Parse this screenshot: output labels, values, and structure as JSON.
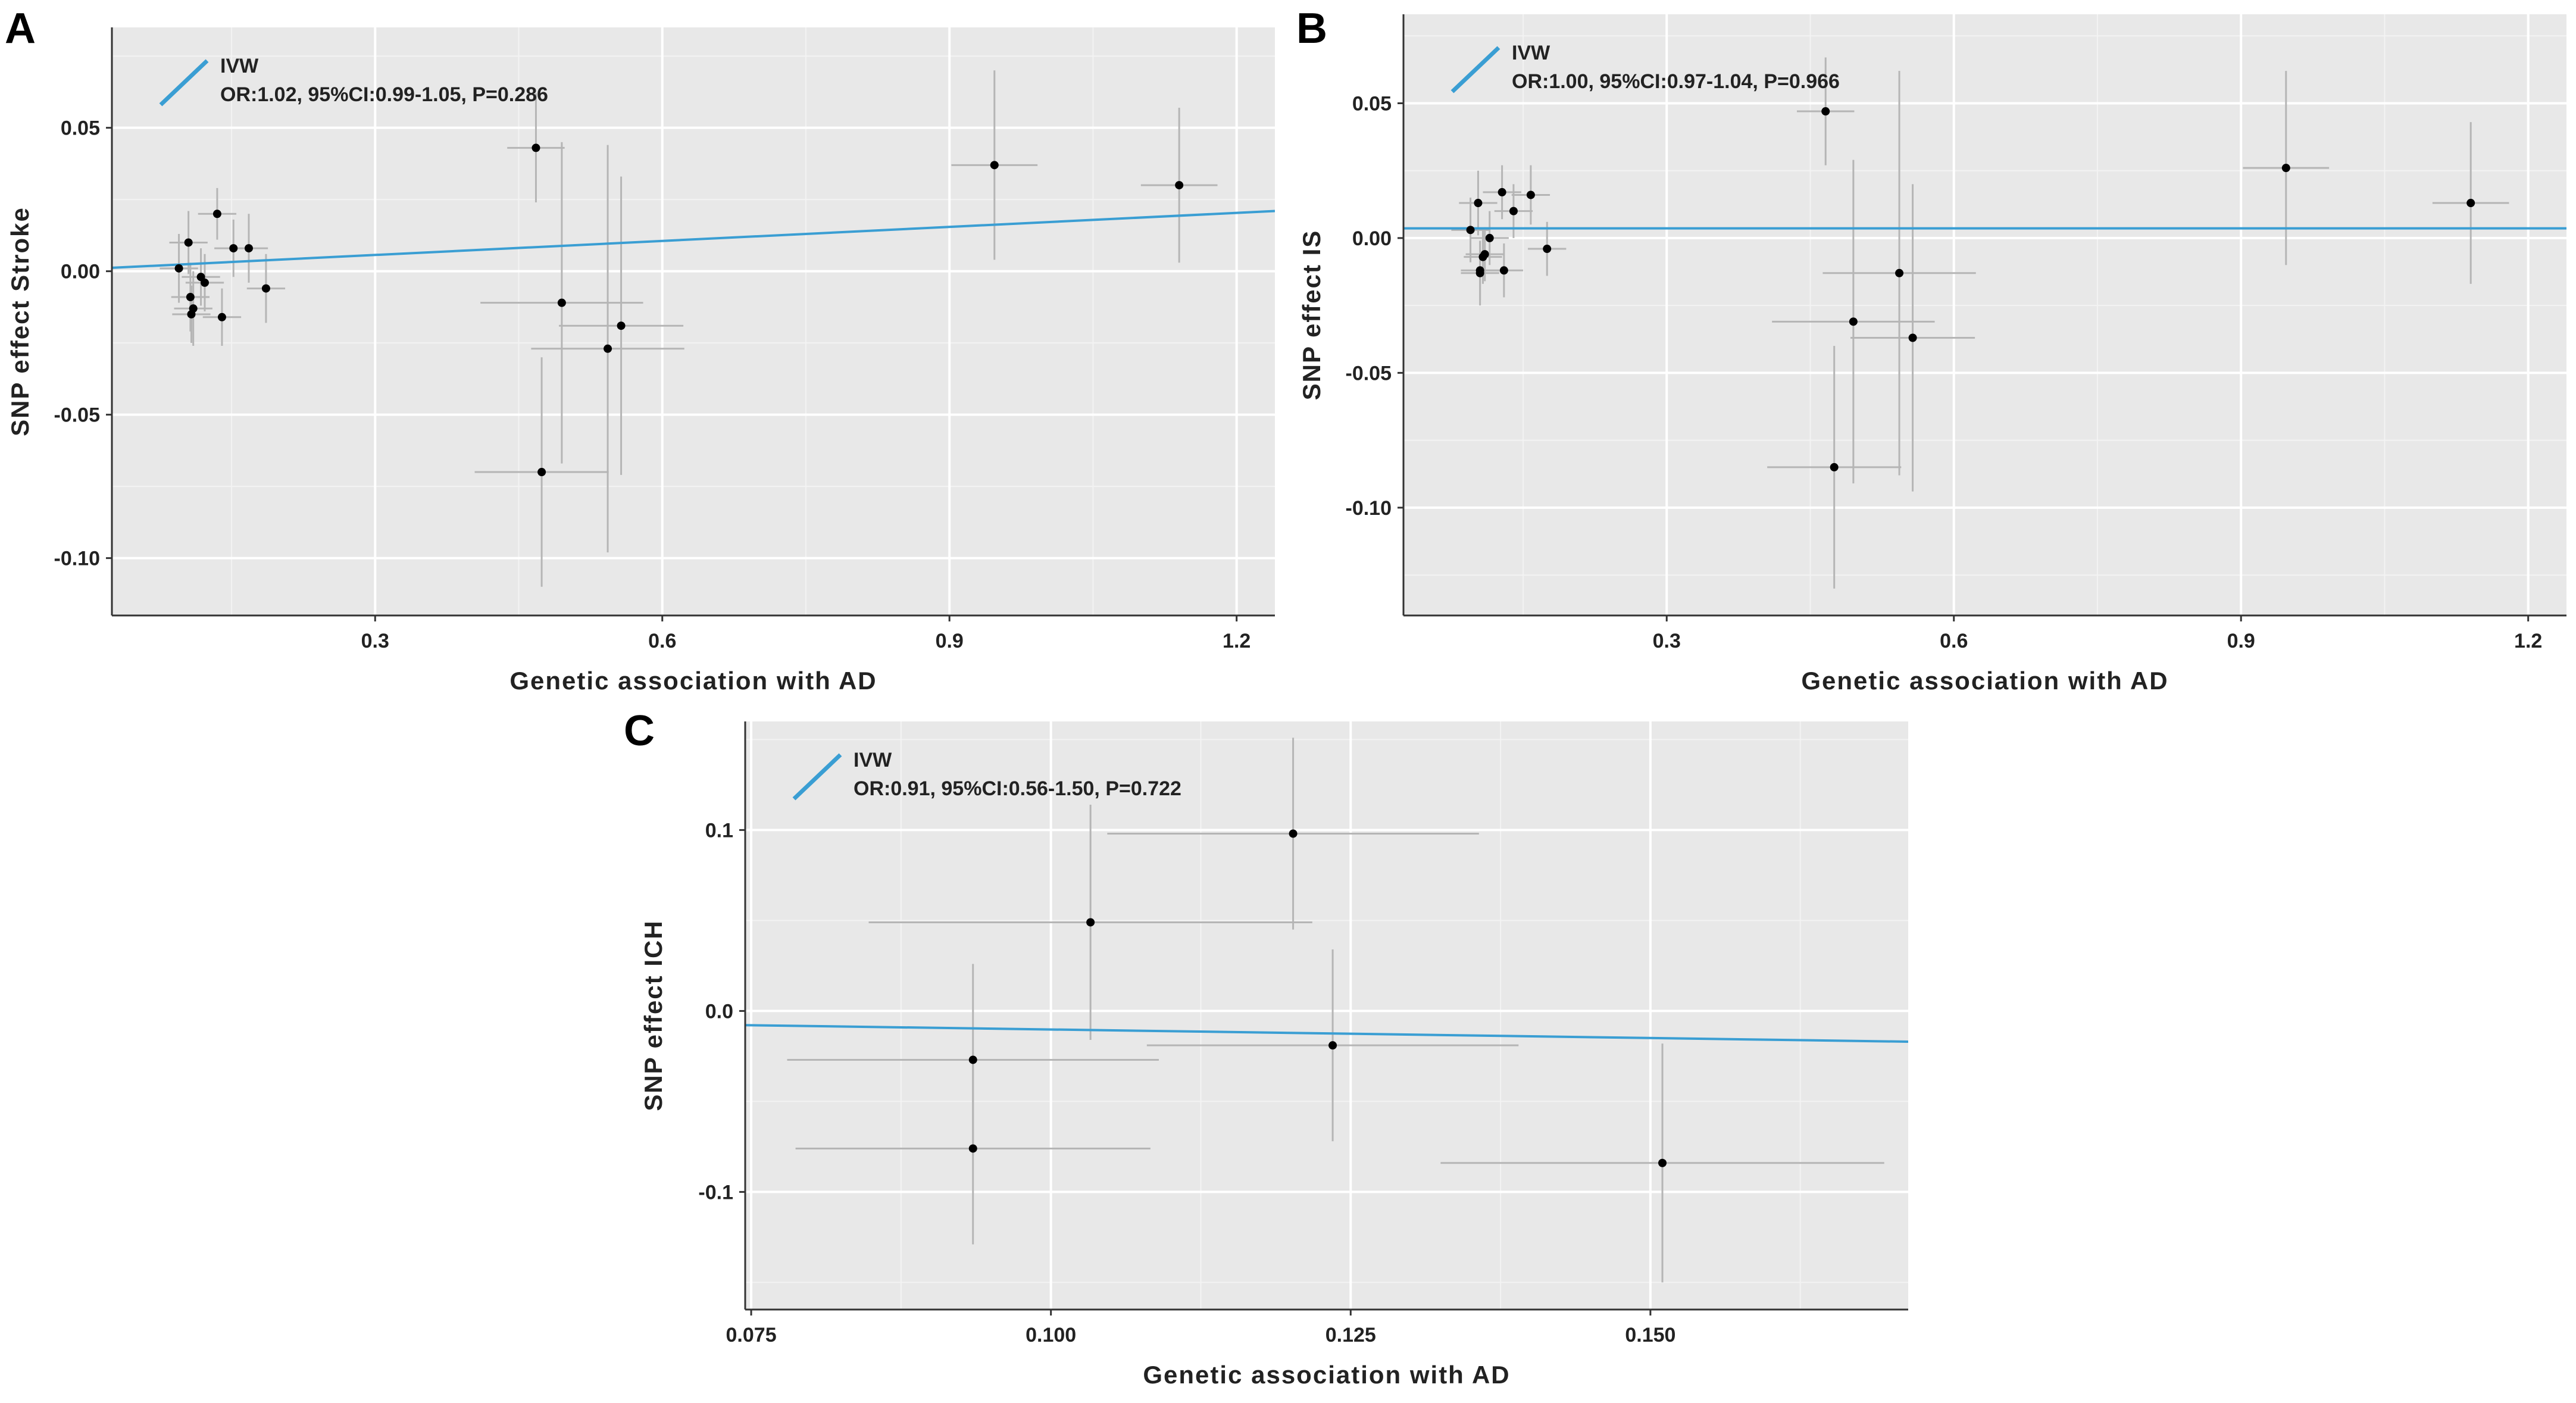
{
  "colors": {
    "panel_bg": "#e8e8e8",
    "grid_major": "#ffffff",
    "grid_minor": "#f3f3f3",
    "errorbar": "#b5b5b5",
    "point": "#000000",
    "fit_line": "#3a9ed3",
    "axis": "#333333"
  },
  "icons": {
    "legend_key": "diagonal-line-icon"
  },
  "chart_data": [
    {
      "panel": "A",
      "type": "scatter",
      "xlabel": "Genetic association with AD",
      "ylabel": "SNP effect Stroke",
      "xlim": [
        0.025,
        1.24
      ],
      "ylim": [
        -0.12,
        0.085
      ],
      "xticks": [
        0.3,
        0.6,
        0.9,
        1.2
      ],
      "xtick_labels": [
        "0.3",
        "0.6",
        "0.9",
        "1.2"
      ],
      "yticks": [
        -0.1,
        -0.05,
        0.0,
        0.05
      ],
      "ytick_labels": [
        "-0.10",
        "-0.05",
        "0.00",
        "0.05"
      ],
      "legend": {
        "title": "IVW",
        "text": "OR:1.02, 95%CI:0.99-1.05, P=0.286",
        "position": "top-left"
      },
      "fit_line": {
        "intercept": 0.00078,
        "slope": 0.0163
      },
      "points": [
        {
          "x": 0.095,
          "y": 0.001,
          "xe": 0.02,
          "ye": 0.012
        },
        {
          "x": 0.105,
          "y": 0.01,
          "xe": 0.02,
          "ye": 0.011
        },
        {
          "x": 0.11,
          "y": -0.013,
          "xe": 0.02,
          "ye": 0.013
        },
        {
          "x": 0.107,
          "y": -0.009,
          "xe": 0.02,
          "ye": 0.012
        },
        {
          "x": 0.108,
          "y": -0.015,
          "xe": 0.02,
          "ye": 0.01
        },
        {
          "x": 0.118,
          "y": -0.002,
          "xe": 0.02,
          "ye": 0.01
        },
        {
          "x": 0.122,
          "y": -0.004,
          "xe": 0.02,
          "ye": 0.01
        },
        {
          "x": 0.135,
          "y": 0.02,
          "xe": 0.02,
          "ye": 0.009
        },
        {
          "x": 0.14,
          "y": -0.016,
          "xe": 0.02,
          "ye": 0.01
        },
        {
          "x": 0.152,
          "y": 0.008,
          "xe": 0.02,
          "ye": 0.01
        },
        {
          "x": 0.168,
          "y": 0.008,
          "xe": 0.02,
          "ye": 0.012
        },
        {
          "x": 0.186,
          "y": -0.006,
          "xe": 0.02,
          "ye": 0.012
        },
        {
          "x": 0.468,
          "y": 0.043,
          "xe": 0.03,
          "ye": 0.019
        },
        {
          "x": 0.474,
          "y": -0.07,
          "xe": 0.07,
          "ye": 0.04
        },
        {
          "x": 0.495,
          "y": -0.011,
          "xe": 0.085,
          "ye": 0.056
        },
        {
          "x": 0.543,
          "y": -0.027,
          "xe": 0.08,
          "ye": 0.071
        },
        {
          "x": 0.557,
          "y": -0.019,
          "xe": 0.065,
          "ye": 0.052
        },
        {
          "x": 0.947,
          "y": 0.037,
          "xe": 0.045,
          "ye": 0.033
        },
        {
          "x": 1.14,
          "y": 0.03,
          "xe": 0.04,
          "ye": 0.027
        }
      ]
    },
    {
      "panel": "B",
      "type": "scatter",
      "xlabel": "Genetic association with AD",
      "ylabel": "SNP effect IS",
      "xlim": [
        0.025,
        1.24
      ],
      "ylim": [
        -0.14,
        0.083
      ],
      "xticks": [
        0.3,
        0.6,
        0.9,
        1.2
      ],
      "xtick_labels": [
        "0.3",
        "0.6",
        "0.9",
        "1.2"
      ],
      "yticks": [
        -0.1,
        -0.05,
        0.0,
        0.05
      ],
      "ytick_labels": [
        "-0.10",
        "-0.05",
        "0.00",
        "0.05"
      ],
      "legend": {
        "title": "IVW",
        "text": "OR:1.00, 95%CI:0.97-1.04, P=0.966",
        "position": "top-left"
      },
      "fit_line": {
        "intercept": 0.0036,
        "slope": 0.0
      },
      "points": [
        {
          "x": 0.095,
          "y": 0.003,
          "xe": 0.02,
          "ye": 0.012
        },
        {
          "x": 0.103,
          "y": 0.013,
          "xe": 0.02,
          "ye": 0.012
        },
        {
          "x": 0.105,
          "y": -0.012,
          "xe": 0.02,
          "ye": 0.011
        },
        {
          "x": 0.105,
          "y": -0.013,
          "xe": 0.02,
          "ye": 0.012
        },
        {
          "x": 0.108,
          "y": -0.007,
          "xe": 0.02,
          "ye": 0.01
        },
        {
          "x": 0.11,
          "y": -0.006,
          "xe": 0.02,
          "ye": 0.01
        },
        {
          "x": 0.115,
          "y": 0.0,
          "xe": 0.02,
          "ye": 0.01
        },
        {
          "x": 0.128,
          "y": 0.017,
          "xe": 0.02,
          "ye": 0.01
        },
        {
          "x": 0.13,
          "y": -0.012,
          "xe": 0.02,
          "ye": 0.01
        },
        {
          "x": 0.14,
          "y": 0.01,
          "xe": 0.02,
          "ye": 0.01
        },
        {
          "x": 0.158,
          "y": 0.016,
          "xe": 0.02,
          "ye": 0.011
        },
        {
          "x": 0.175,
          "y": -0.004,
          "xe": 0.02,
          "ye": 0.01
        },
        {
          "x": 0.466,
          "y": 0.047,
          "xe": 0.03,
          "ye": 0.02
        },
        {
          "x": 0.475,
          "y": -0.085,
          "xe": 0.07,
          "ye": 0.045
        },
        {
          "x": 0.495,
          "y": -0.031,
          "xe": 0.085,
          "ye": 0.06
        },
        {
          "x": 0.543,
          "y": -0.013,
          "xe": 0.08,
          "ye": 0.075
        },
        {
          "x": 0.557,
          "y": -0.037,
          "xe": 0.065,
          "ye": 0.057
        },
        {
          "x": 0.947,
          "y": 0.026,
          "xe": 0.045,
          "ye": 0.036
        },
        {
          "x": 1.14,
          "y": 0.013,
          "xe": 0.04,
          "ye": 0.03
        }
      ]
    },
    {
      "panel": "C",
      "type": "scatter",
      "xlabel": "Genetic association with AD",
      "ylabel": "SNP effect ICH",
      "xlim": [
        0.0745,
        0.1715
      ],
      "ylim": [
        -0.165,
        0.16
      ],
      "xticks": [
        0.075,
        0.1,
        0.125,
        0.15
      ],
      "xtick_labels": [
        "0.075",
        "0.100",
        "0.125",
        "0.150"
      ],
      "yticks": [
        -0.1,
        0.0,
        0.1
      ],
      "ytick_labels": [
        "-0.1",
        "0.0",
        "0.1"
      ],
      "legend": {
        "title": "IVW",
        "text": "OR:0.91, 95%CI:0.56-1.50, P=0.722",
        "position": "top-left"
      },
      "fit_line": {
        "intercept": -0.0008,
        "slope": -0.0943
      },
      "points": [
        {
          "x": 0.1033,
          "y": 0.049,
          "xe": 0.0185,
          "ye": 0.065
        },
        {
          "x": 0.1202,
          "y": 0.098,
          "xe": 0.0155,
          "ye": 0.053
        },
        {
          "x": 0.0935,
          "y": -0.027,
          "xe": 0.0155,
          "ye": 0.053
        },
        {
          "x": 0.0935,
          "y": -0.076,
          "xe": 0.0148,
          "ye": 0.053
        },
        {
          "x": 0.1235,
          "y": -0.019,
          "xe": 0.0155,
          "ye": 0.053
        },
        {
          "x": 0.151,
          "y": -0.084,
          "xe": 0.0185,
          "ye": 0.066
        }
      ]
    }
  ]
}
